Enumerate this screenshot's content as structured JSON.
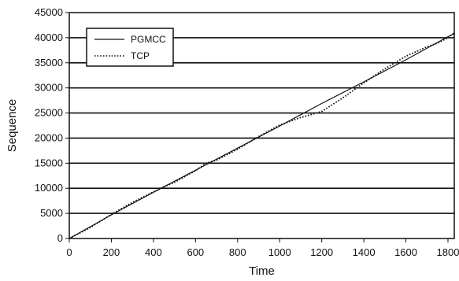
{
  "chart_data": {
    "type": "line",
    "title": "",
    "xlabel": "Time",
    "ylabel": "Sequence",
    "xlim": [
      0,
      1830
    ],
    "ylim": [
      0,
      45000
    ],
    "x_ticks": [
      "0",
      "200",
      "400",
      "600",
      "800",
      "1000",
      "1200",
      "1400",
      "1600",
      "1800"
    ],
    "y_ticks": [
      "0",
      "5000",
      "10000",
      "15000",
      "20000",
      "25000",
      "30000",
      "35000",
      "40000",
      "45000"
    ],
    "grid": "horizontal",
    "legend": "top-left",
    "series": [
      {
        "name": "PGMCC",
        "style": "solid",
        "color": "#111111",
        "points": [
          [
            0,
            0
          ],
          [
            200,
            4700
          ],
          [
            400,
            9200
          ],
          [
            600,
            13600
          ],
          [
            800,
            18000
          ],
          [
            1000,
            22400
          ],
          [
            1200,
            26900
          ],
          [
            1400,
            31200
          ],
          [
            1600,
            35600
          ],
          [
            1800,
            40200
          ],
          [
            1830,
            40800
          ]
        ]
      },
      {
        "name": "TCP",
        "style": "dotted",
        "color": "#111111",
        "points": [
          [
            0,
            0
          ],
          [
            100,
            2200
          ],
          [
            200,
            4800
          ],
          [
            300,
            7200
          ],
          [
            400,
            9300
          ],
          [
            450,
            10300
          ],
          [
            500,
            11200
          ],
          [
            600,
            13500
          ],
          [
            650,
            15000
          ],
          [
            700,
            15600
          ],
          [
            800,
            17800
          ],
          [
            900,
            20300
          ],
          [
            1000,
            22600
          ],
          [
            1100,
            24100
          ],
          [
            1150,
            24700
          ],
          [
            1200,
            25300
          ],
          [
            1300,
            28000
          ],
          [
            1400,
            31000
          ],
          [
            1500,
            33800
          ],
          [
            1600,
            36300
          ],
          [
            1700,
            38200
          ],
          [
            1750,
            38900
          ],
          [
            1800,
            40000
          ],
          [
            1830,
            41000
          ]
        ]
      }
    ]
  }
}
